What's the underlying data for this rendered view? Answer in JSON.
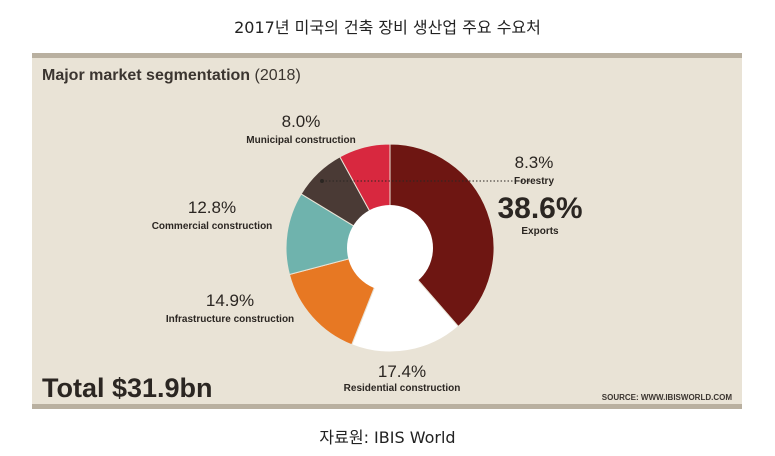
{
  "caption_top": "2017년 미국의 건축 장비 생산업 주요 수요처",
  "caption_bottom": "자료원: IBIS World",
  "panel": {
    "title": "Major market segmentation",
    "year": "(2018)",
    "total": "Total $31.9bn",
    "source": "SOURCE: WWW.IBISWORLD.COM"
  },
  "chart_data": {
    "type": "pie",
    "title": "Major market segmentation (2018)",
    "total": "$31.9bn",
    "slices": [
      {
        "label": "Exports",
        "value": 38.6,
        "value_label": "38.6%",
        "color": "#6e1612"
      },
      {
        "label": "Residential construction",
        "value": 17.4,
        "value_label": "17.4%",
        "color": "#ffffff"
      },
      {
        "label": "Infrastructure construction",
        "value": 14.9,
        "value_label": "14.9%",
        "color": "#e77823"
      },
      {
        "label": "Commercial construction",
        "value": 12.8,
        "value_label": "12.8%",
        "color": "#6fb3ad"
      },
      {
        "label": "Forestry",
        "value": 8.3,
        "value_label": "8.3%",
        "color": "#4a3a35"
      },
      {
        "label": "Municipal construction",
        "value": 8.0,
        "value_label": "8.0%",
        "color": "#d8283f"
      }
    ]
  }
}
